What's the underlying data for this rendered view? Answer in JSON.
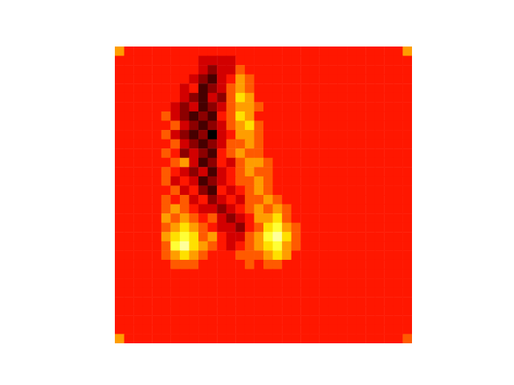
{
  "chart_data": {
    "type": "heatmap",
    "tick_labels": false,
    "zlim": [
      0,
      10
    ],
    "cells": [
      [
        6,
        4,
        4,
        4,
        4,
        4,
        4,
        4,
        4,
        4,
        4,
        4,
        4,
        4,
        4,
        4,
        4,
        4,
        4,
        4,
        4,
        4,
        4,
        4,
        4,
        4,
        4,
        4,
        4,
        4,
        4,
        6
      ],
      [
        4,
        4,
        4,
        4,
        4,
        4,
        4,
        4,
        4,
        3,
        3,
        3,
        3,
        4,
        4,
        4,
        4,
        4,
        4,
        4,
        4,
        4,
        4,
        4,
        4,
        4,
        4,
        4,
        4,
        4,
        4,
        4
      ],
      [
        4,
        4,
        4,
        4,
        4,
        4,
        4,
        4,
        4,
        3,
        2,
        3,
        3,
        5,
        4,
        4,
        4,
        4,
        4,
        4,
        4,
        4,
        4,
        4,
        4,
        4,
        4,
        4,
        4,
        4,
        4,
        4
      ],
      [
        4,
        4,
        4,
        4,
        4,
        4,
        4,
        4,
        3,
        2,
        1,
        3,
        4,
        6,
        5,
        4,
        4,
        4,
        4,
        4,
        4,
        4,
        4,
        4,
        4,
        4,
        4,
        4,
        4,
        4,
        4,
        4
      ],
      [
        4,
        4,
        4,
        4,
        4,
        4,
        4,
        3,
        4,
        1,
        2,
        3,
        5,
        6,
        5,
        4,
        4,
        4,
        4,
        4,
        4,
        4,
        4,
        4,
        4,
        4,
        4,
        4,
        4,
        4,
        4,
        4
      ],
      [
        4,
        4,
        4,
        4,
        4,
        4,
        4,
        3,
        2,
        1,
        3,
        2,
        5,
        7,
        6,
        4,
        4,
        4,
        4,
        4,
        4,
        4,
        4,
        4,
        4,
        4,
        4,
        4,
        4,
        4,
        4,
        4
      ],
      [
        4,
        4,
        4,
        4,
        4,
        4,
        3,
        2,
        3,
        1,
        2,
        3,
        5,
        6,
        6,
        5,
        4,
        4,
        4,
        4,
        4,
        4,
        4,
        4,
        4,
        4,
        4,
        4,
        4,
        4,
        4,
        4
      ],
      [
        4,
        4,
        4,
        4,
        4,
        5,
        3,
        2,
        1,
        2,
        1,
        4,
        5,
        7,
        6,
        4,
        4,
        4,
        4,
        4,
        4,
        4,
        4,
        4,
        4,
        4,
        4,
        4,
        4,
        4,
        4,
        4
      ],
      [
        4,
        4,
        4,
        4,
        4,
        4,
        5,
        3,
        2,
        1,
        2,
        3,
        5,
        6,
        7,
        5,
        4,
        4,
        4,
        4,
        4,
        4,
        4,
        4,
        4,
        4,
        4,
        4,
        4,
        4,
        4,
        4
      ],
      [
        4,
        4,
        4,
        4,
        4,
        5,
        3,
        2,
        1,
        2,
        0,
        3,
        4,
        6,
        6,
        5,
        4,
        4,
        4,
        4,
        4,
        4,
        4,
        4,
        4,
        4,
        4,
        4,
        4,
        4,
        4,
        4
      ],
      [
        4,
        4,
        4,
        4,
        4,
        4,
        5,
        3,
        2,
        1,
        2,
        3,
        5,
        5,
        6,
        5,
        4,
        4,
        4,
        4,
        4,
        4,
        4,
        4,
        4,
        4,
        4,
        4,
        4,
        4,
        4,
        4
      ],
      [
        4,
        4,
        4,
        4,
        4,
        5,
        4,
        2,
        3,
        2,
        1,
        4,
        5,
        6,
        5,
        5,
        4,
        4,
        4,
        4,
        4,
        4,
        4,
        4,
        4,
        4,
        4,
        4,
        4,
        4,
        4,
        4
      ],
      [
        4,
        4,
        4,
        4,
        4,
        4,
        5,
        6,
        3,
        1,
        2,
        4,
        3,
        5,
        6,
        6,
        5,
        4,
        4,
        4,
        4,
        4,
        4,
        4,
        4,
        4,
        4,
        4,
        4,
        4,
        4,
        4
      ],
      [
        4,
        4,
        4,
        4,
        4,
        5,
        4,
        3,
        2,
        3,
        1,
        3,
        4,
        5,
        6,
        5,
        5,
        4,
        4,
        4,
        4,
        4,
        4,
        4,
        4,
        4,
        4,
        4,
        4,
        4,
        4,
        4
      ],
      [
        4,
        4,
        4,
        4,
        4,
        5,
        3,
        4,
        3,
        1,
        2,
        3,
        4,
        5,
        5,
        6,
        5,
        4,
        4,
        4,
        4,
        4,
        4,
        4,
        4,
        4,
        4,
        4,
        4,
        4,
        4,
        4
      ],
      [
        4,
        4,
        4,
        4,
        4,
        4,
        5,
        3,
        4,
        2,
        1,
        4,
        3,
        4,
        5,
        6,
        5,
        4,
        4,
        4,
        4,
        4,
        4,
        4,
        4,
        4,
        4,
        4,
        4,
        4,
        4,
        4
      ],
      [
        4,
        4,
        4,
        4,
        4,
        5,
        4,
        5,
        3,
        4,
        2,
        3,
        4,
        3,
        5,
        5,
        6,
        5,
        4,
        4,
        4,
        4,
        4,
        4,
        4,
        4,
        4,
        4,
        4,
        4,
        4,
        4
      ],
      [
        4,
        4,
        4,
        4,
        4,
        5,
        6,
        5,
        4,
        3,
        3,
        2,
        3,
        4,
        5,
        6,
        5,
        6,
        5,
        4,
        4,
        4,
        4,
        4,
        4,
        4,
        4,
        4,
        4,
        4,
        4,
        4
      ],
      [
        4,
        4,
        4,
        4,
        4,
        6,
        5,
        6,
        5,
        4,
        5,
        3,
        2,
        3,
        4,
        6,
        6,
        7,
        5,
        4,
        4,
        4,
        4,
        4,
        4,
        4,
        4,
        4,
        4,
        4,
        4,
        4
      ],
      [
        4,
        4,
        4,
        4,
        4,
        5,
        6,
        7,
        6,
        5,
        4,
        3,
        3,
        2,
        4,
        5,
        7,
        8,
        6,
        5,
        4,
        4,
        4,
        4,
        4,
        4,
        4,
        4,
        4,
        4,
        4,
        4
      ],
      [
        4,
        4,
        4,
        4,
        4,
        6,
        7,
        8,
        7,
        5,
        6,
        4,
        3,
        3,
        5,
        6,
        8,
        9,
        7,
        5,
        4,
        4,
        4,
        4,
        4,
        4,
        4,
        4,
        4,
        4,
        4,
        4
      ],
      [
        4,
        4,
        4,
        4,
        4,
        5,
        8,
        9,
        7,
        6,
        5,
        4,
        3,
        4,
        5,
        6,
        7,
        8,
        6,
        5,
        4,
        4,
        4,
        4,
        4,
        4,
        4,
        4,
        4,
        4,
        4,
        4
      ],
      [
        4,
        4,
        4,
        4,
        4,
        5,
        6,
        7,
        6,
        5,
        4,
        4,
        4,
        5,
        5,
        5,
        6,
        7,
        6,
        4,
        4,
        4,
        4,
        4,
        4,
        4,
        4,
        4,
        4,
        4,
        4,
        4
      ],
      [
        4,
        4,
        4,
        4,
        4,
        4,
        5,
        5,
        5,
        4,
        4,
        4,
        4,
        4,
        5,
        4,
        5,
        5,
        4,
        4,
        4,
        4,
        4,
        4,
        4,
        4,
        4,
        4,
        4,
        4,
        4,
        4
      ],
      [
        4,
        4,
        4,
        4,
        4,
        4,
        4,
        4,
        4,
        4,
        4,
        4,
        4,
        4,
        4,
        4,
        4,
        4,
        4,
        4,
        4,
        4,
        4,
        4,
        4,
        4,
        4,
        4,
        4,
        4,
        4,
        4
      ],
      [
        4,
        4,
        4,
        4,
        4,
        4,
        4,
        4,
        4,
        4,
        4,
        4,
        4,
        4,
        4,
        4,
        4,
        4,
        4,
        4,
        4,
        4,
        4,
        4,
        4,
        4,
        4,
        4,
        4,
        4,
        4,
        4
      ],
      [
        4,
        4,
        4,
        4,
        4,
        4,
        4,
        4,
        4,
        4,
        4,
        4,
        4,
        4,
        4,
        4,
        4,
        4,
        4,
        4,
        4,
        4,
        4,
        4,
        4,
        4,
        4,
        4,
        4,
        4,
        4,
        4
      ],
      [
        4,
        4,
        4,
        4,
        4,
        4,
        4,
        4,
        4,
        4,
        4,
        4,
        4,
        4,
        4,
        4,
        4,
        4,
        4,
        4,
        4,
        4,
        4,
        4,
        4,
        4,
        4,
        4,
        4,
        4,
        4,
        4
      ],
      [
        4,
        4,
        4,
        4,
        4,
        4,
        4,
        4,
        4,
        4,
        4,
        4,
        4,
        4,
        4,
        4,
        4,
        4,
        4,
        4,
        4,
        4,
        4,
        4,
        4,
        4,
        4,
        4,
        4,
        4,
        4,
        4
      ],
      [
        4,
        4,
        4,
        4,
        4,
        4,
        4,
        4,
        4,
        4,
        4,
        4,
        4,
        4,
        4,
        4,
        4,
        4,
        4,
        4,
        4,
        4,
        4,
        4,
        4,
        4,
        4,
        4,
        4,
        4,
        4,
        4
      ],
      [
        4,
        4,
        4,
        4,
        4,
        4,
        4,
        4,
        4,
        4,
        4,
        4,
        4,
        4,
        4,
        4,
        4,
        4,
        4,
        4,
        4,
        4,
        4,
        4,
        4,
        4,
        4,
        4,
        4,
        4,
        4,
        4
      ],
      [
        6,
        4,
        4,
        4,
        4,
        4,
        4,
        4,
        4,
        4,
        4,
        4,
        4,
        4,
        4,
        4,
        4,
        4,
        4,
        4,
        4,
        4,
        4,
        4,
        4,
        4,
        4,
        4,
        4,
        4,
        4,
        5
      ]
    ]
  }
}
